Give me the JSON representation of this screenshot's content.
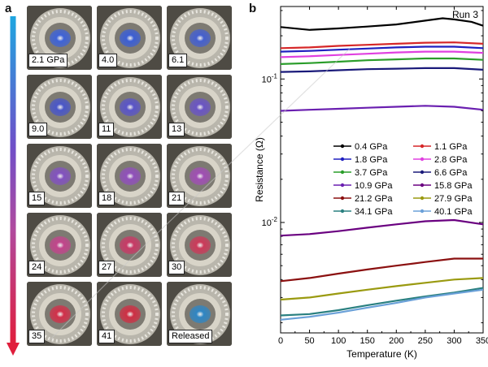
{
  "panel_a": {
    "letter": "a",
    "arrow_colors": [
      "#1ea6e0",
      "#6f4fc8",
      "#b04a9e",
      "#e01e3c"
    ],
    "tiles": [
      {
        "label": "2.1 GPa",
        "sample_color": "#3e63d8"
      },
      {
        "label": "4.0",
        "sample_color": "#3c5fd4"
      },
      {
        "label": "6.1",
        "sample_color": "#4560cf"
      },
      {
        "label": "9.0",
        "sample_color": "#4a57c8"
      },
      {
        "label": "11",
        "sample_color": "#5a55c8"
      },
      {
        "label": "13",
        "sample_color": "#6a55c4"
      },
      {
        "label": "15",
        "sample_color": "#8252c0"
      },
      {
        "label": "18",
        "sample_color": "#9050bb"
      },
      {
        "label": "21",
        "sample_color": "#a04fb4"
      },
      {
        "label": "24",
        "sample_color": "#c2458c"
      },
      {
        "label": "27",
        "sample_color": "#c83a66"
      },
      {
        "label": "30",
        "sample_color": "#cc3a5a"
      },
      {
        "label": "35",
        "sample_color": "#d2304a"
      },
      {
        "label": "41",
        "sample_color": "#cf2f44"
      },
      {
        "label": "Released",
        "sample_color": "#2f86c4"
      }
    ]
  },
  "panel_b": {
    "letter": "b",
    "run_label": "Run 3",
    "chart_data": {
      "type": "line",
      "xlabel": "Temperature (K)",
      "ylabel": "Resistance (Ω)",
      "xlim": [
        0,
        350
      ],
      "ylim": [
        0.0017,
        0.32
      ],
      "yscale": "log",
      "xticks": [
        0,
        50,
        100,
        150,
        200,
        250,
        300,
        350
      ],
      "yticks": [
        {
          "value": 0.1,
          "label": "10-1",
          "base": "10",
          "exp": "-1"
        },
        {
          "value": 0.01,
          "label": "10-2",
          "base": "10",
          "exp": "-2"
        }
      ],
      "legend_position": "center-right",
      "series": [
        {
          "name": "0.4 GPa",
          "color": "#000000",
          "x": [
            0,
            50,
            100,
            150,
            200,
            250,
            280,
            300,
            330,
            350
          ],
          "y": [
            0.23,
            0.22,
            0.225,
            0.232,
            0.24,
            0.255,
            0.265,
            0.26,
            0.25,
            0.235
          ]
        },
        {
          "name": "1.1 GPa",
          "color": "#d62728",
          "x": [
            0,
            50,
            100,
            150,
            200,
            250,
            300,
            350
          ],
          "y": [
            0.164,
            0.166,
            0.17,
            0.173,
            0.176,
            0.179,
            0.18,
            0.176
          ]
        },
        {
          "name": "1.8 GPa",
          "color": "#2020c0",
          "x": [
            0,
            50,
            100,
            150,
            200,
            250,
            300,
            350
          ],
          "y": [
            0.155,
            0.157,
            0.16,
            0.163,
            0.166,
            0.168,
            0.168,
            0.164
          ]
        },
        {
          "name": "2.8 GPa",
          "color": "#e040e0",
          "x": [
            0,
            50,
            100,
            150,
            200,
            250,
            300,
            350
          ],
          "y": [
            0.142,
            0.144,
            0.147,
            0.15,
            0.153,
            0.155,
            0.155,
            0.152
          ]
        },
        {
          "name": "3.7 GPa",
          "color": "#2a9d2a",
          "x": [
            0,
            50,
            100,
            150,
            200,
            250,
            300,
            350
          ],
          "y": [
            0.127,
            0.129,
            0.132,
            0.135,
            0.137,
            0.139,
            0.139,
            0.136
          ]
        },
        {
          "name": "6.6 GPa",
          "color": "#1a1a7a",
          "x": [
            0,
            50,
            100,
            150,
            200,
            250,
            300,
            350
          ],
          "y": [
            0.112,
            0.113,
            0.115,
            0.117,
            0.118,
            0.119,
            0.119,
            0.116
          ]
        },
        {
          "name": "10.9 GPa",
          "color": "#6a1fb0",
          "x": [
            0,
            50,
            100,
            150,
            200,
            250,
            300,
            350
          ],
          "y": [
            0.06,
            0.061,
            0.062,
            0.063,
            0.064,
            0.065,
            0.064,
            0.061
          ]
        },
        {
          "name": "15.8 GPa",
          "color": "#6a0080",
          "x": [
            0,
            50,
            100,
            150,
            200,
            250,
            300,
            350
          ],
          "y": [
            0.0081,
            0.0083,
            0.0087,
            0.0092,
            0.0097,
            0.0102,
            0.0104,
            0.0097
          ]
        },
        {
          "name": "21.2 GPa",
          "color": "#8b1010",
          "x": [
            0,
            50,
            100,
            150,
            200,
            250,
            300,
            350
          ],
          "y": [
            0.0039,
            0.0041,
            0.0044,
            0.0047,
            0.005,
            0.0053,
            0.0056,
            0.0056
          ]
        },
        {
          "name": "27.9 GPa",
          "color": "#9a9a10",
          "x": [
            0,
            50,
            100,
            150,
            200,
            250,
            300,
            350
          ],
          "y": [
            0.0029,
            0.003,
            0.0032,
            0.0034,
            0.0036,
            0.0038,
            0.004,
            0.0041
          ]
        },
        {
          "name": "34.1 GPa",
          "color": "#2a8080",
          "x": [
            0,
            50,
            100,
            150,
            200,
            250,
            300,
            350
          ],
          "y": [
            0.00225,
            0.0023,
            0.00245,
            0.00265,
            0.00285,
            0.00305,
            0.00325,
            0.0035
          ]
        },
        {
          "name": "40.1 GPa",
          "color": "#6aa0d8",
          "x": [
            0,
            50,
            100,
            150,
            200,
            250,
            300,
            350
          ],
          "y": [
            0.0021,
            0.0022,
            0.00235,
            0.00255,
            0.00275,
            0.003,
            0.0032,
            0.0034
          ]
        }
      ]
    }
  }
}
